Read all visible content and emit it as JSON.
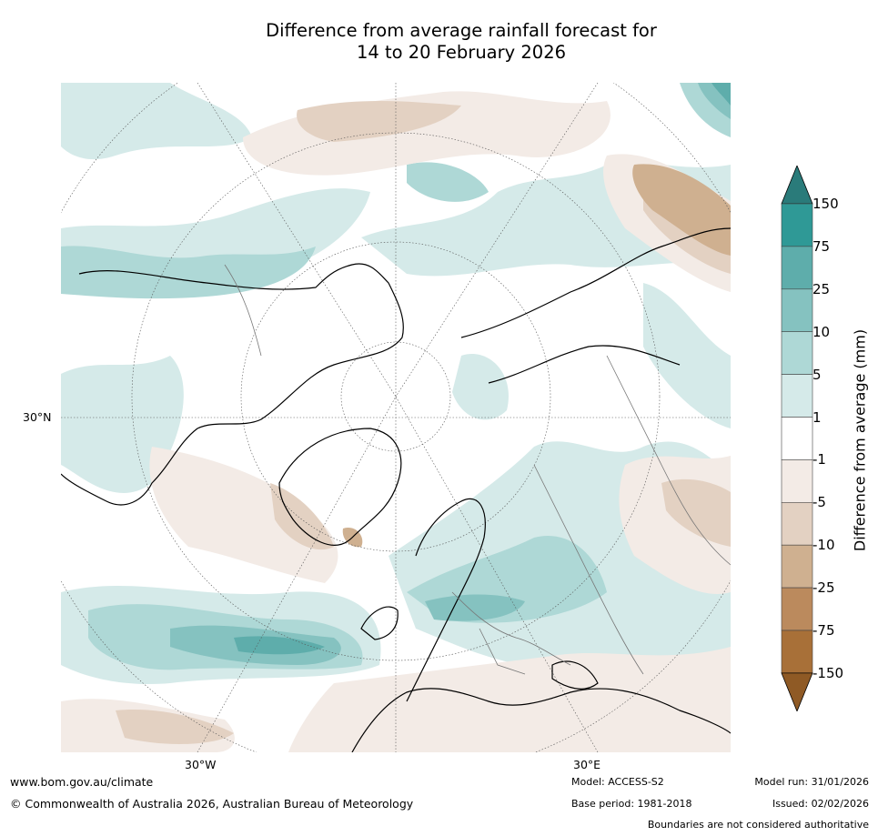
{
  "title": {
    "line1": "Difference from average rainfall forecast for",
    "line2": "14 to 20 February 2026"
  },
  "axis_labels": {
    "lat_30n": "30°N",
    "lon_30w": "30°W",
    "lon_30e": "30°E"
  },
  "colorbar": {
    "title": "Difference from average (mm)",
    "ticks": [
      "150",
      "75",
      "25",
      "10",
      "5",
      "1",
      "-1",
      "-5",
      "-10",
      "-25",
      "-75",
      "-150"
    ],
    "colors": [
      "#2a7b7a",
      "#2f9996",
      "#5eadab",
      "#85c2c0",
      "#aed8d6",
      "#d5eae9",
      "#ffffff",
      "#f3ebe6",
      "#e3d1c2",
      "#cfb090",
      "#bb8a5d",
      "#a87038",
      "#8f5a25"
    ]
  },
  "footer": {
    "website": "www.bom.gov.au/climate",
    "copyright": "© Commonwealth of Australia 2026, Australian Bureau of Meteorology",
    "model": "Model: ACCESS-S2",
    "base_period": "Base period: 1981-2018",
    "model_run": "Model run: 31/01/2026",
    "issued": "Issued: 02/02/2026",
    "disclaimer": "Boundaries are not considered authoritative"
  }
}
